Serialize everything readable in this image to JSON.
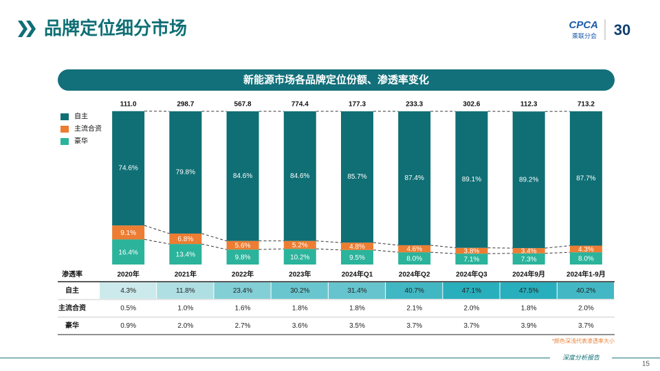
{
  "header": {
    "title": "品牌定位细分市场",
    "logo": "CPCA",
    "logo_sub": "乘联分会",
    "anniversary": "30"
  },
  "chart_data": {
    "type": "stacked_bar",
    "title": "新能源市场各品牌定位份额、渗透率变化",
    "categories": [
      "2020年",
      "2021年",
      "2022年",
      "2023年",
      "2024年Q1",
      "2024年Q2",
      "2024年Q3",
      "2024年9月",
      "2024年1-9月"
    ],
    "totals": {
      "values": [
        111.0,
        298.7,
        567.8,
        774.4,
        177.3,
        233.3,
        302.6,
        112.3,
        713.2
      ],
      "value_labels": [
        "111.0",
        "298.7",
        "567.8",
        "774.4",
        "177.3",
        "233.3",
        "302.6",
        "112.3",
        "713.2"
      ]
    },
    "series": [
      {
        "name": "豪华",
        "color": "#2bb39b",
        "values": [
          16.4,
          13.4,
          9.8,
          10.2,
          9.5,
          8.0,
          7.1,
          7.3,
          8.0
        ],
        "value_labels": [
          "16.4%",
          "13.4%",
          "9.8%",
          "10.2%",
          "9.5%",
          "8.0%",
          "7.1%",
          "7.3%",
          "8.0%"
        ]
      },
      {
        "name": "主流合资",
        "color": "#ec7d32",
        "values": [
          9.1,
          6.8,
          5.6,
          5.2,
          4.8,
          4.6,
          3.8,
          3.4,
          4.3
        ],
        "value_labels": [
          "9.1%",
          "6.8%",
          "5.6%",
          "5.2%",
          "4.8%",
          "4.6%",
          "3.8%",
          "3.4%",
          "4.3%"
        ]
      },
      {
        "name": "自主",
        "color": "#0f6f75",
        "values": [
          74.6,
          79.8,
          84.6,
          84.6,
          85.7,
          87.4,
          89.1,
          89.2,
          87.7
        ],
        "value_labels": [
          "74.6%",
          "79.8%",
          "84.6%",
          "84.6%",
          "85.7%",
          "87.4%",
          "89.1%",
          "89.2%",
          "87.7%"
        ]
      }
    ],
    "ylim": [
      0,
      100
    ]
  },
  "table": {
    "header": "渗透率",
    "rows": [
      {
        "label": "自主",
        "cells": [
          "4.3%",
          "11.8%",
          "23.4%",
          "30.2%",
          "31.4%",
          "40.7%",
          "47.1%",
          "47.5%",
          "40.2%"
        ]
      },
      {
        "label": "主流合资",
        "cells": [
          "0.5%",
          "1.0%",
          "1.6%",
          "1.8%",
          "1.8%",
          "2.1%",
          "2.0%",
          "1.8%",
          "2.0%"
        ]
      },
      {
        "label": "豪华",
        "cells": [
          "0.9%",
          "2.0%",
          "2.7%",
          "3.6%",
          "3.5%",
          "3.7%",
          "3.7%",
          "3.9%",
          "3.7%"
        ]
      }
    ],
    "note": "*颜色深浅代表渗透率大小"
  },
  "footer": {
    "text": "深度分析报告",
    "page": "15"
  }
}
